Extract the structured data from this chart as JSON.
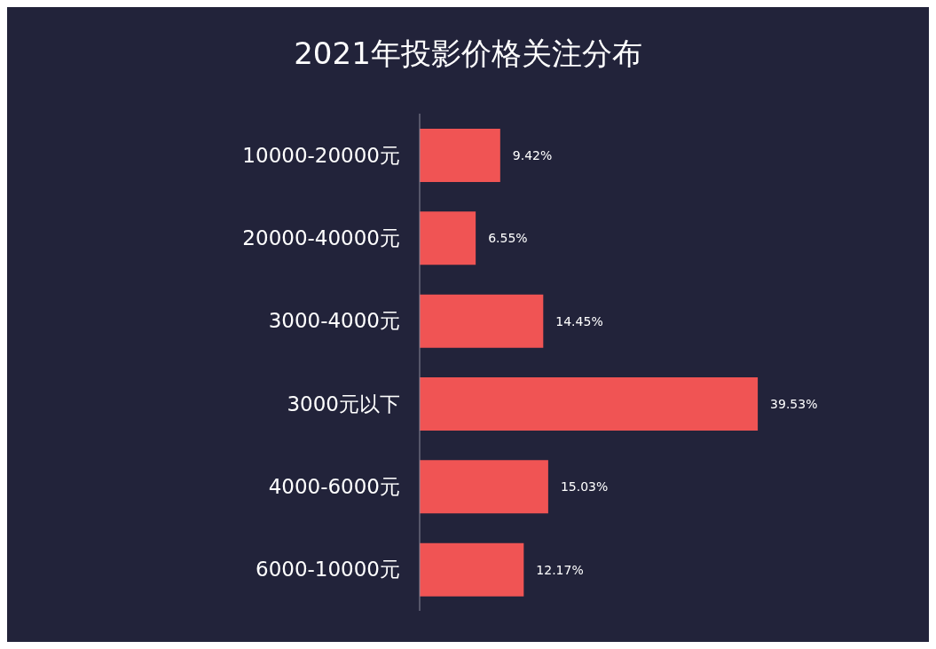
{
  "chart_data": {
    "type": "bar",
    "orientation": "horizontal",
    "title": "2021年投影价格关注分布",
    "categories": [
      "10000-20000元",
      "20000-40000元",
      "3000-4000元",
      "3000元以下",
      "4000-6000元",
      "6000-10000元"
    ],
    "values": [
      9.42,
      6.55,
      14.45,
      39.53,
      15.03,
      12.17
    ],
    "value_labels": [
      "9.42%",
      "6.55%",
      "14.45%",
      "39.53%",
      "15.03%",
      "12.17%"
    ],
    "color": "#f05454",
    "grid": false,
    "legend": false
  }
}
